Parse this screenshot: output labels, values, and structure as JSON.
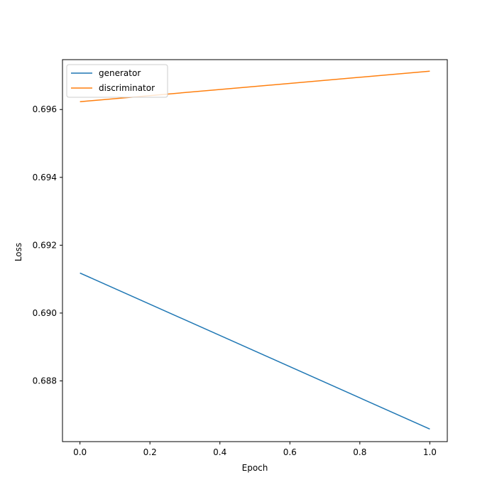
{
  "chart_data": {
    "type": "line",
    "title": "",
    "xlabel": "Epoch",
    "ylabel": "Loss",
    "xlim": [
      -0.05,
      1.05
    ],
    "ylim": [
      0.68621,
      0.69747
    ],
    "xticks": [
      0.0,
      0.2,
      0.4,
      0.6,
      0.8,
      1.0
    ],
    "xtick_labels": [
      "0.0",
      "0.2",
      "0.4",
      "0.6",
      "0.8",
      "1.0"
    ],
    "yticks": [
      0.688,
      0.69,
      0.692,
      0.694,
      0.696
    ],
    "ytick_labels": [
      "0.688",
      "0.690",
      "0.692",
      "0.694",
      "0.696"
    ],
    "grid": false,
    "legend_position": "top-left",
    "series": [
      {
        "name": "generator",
        "color": "#1f77b4",
        "x": [
          0,
          1
        ],
        "y": [
          0.69118,
          0.68658
        ]
      },
      {
        "name": "discriminator",
        "color": "#ff7f0e",
        "x": [
          0,
          1
        ],
        "y": [
          0.69623,
          0.69713
        ]
      }
    ]
  }
}
